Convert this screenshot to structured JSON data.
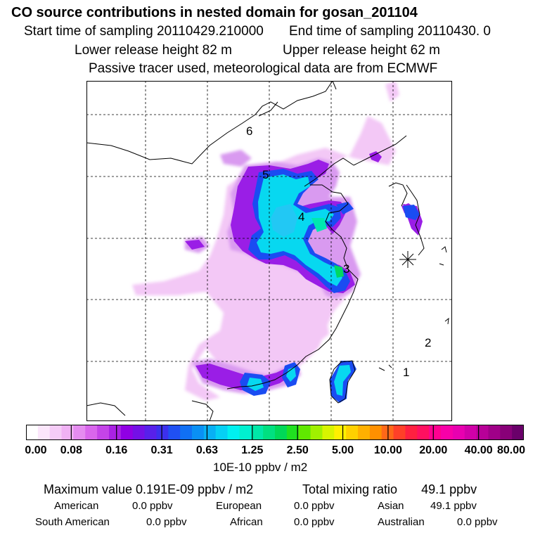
{
  "header": {
    "title": "CO  source contributions in nested domain for gosan_201104",
    "start": "Start time of sampling 20110429.210000",
    "end": "End time of sampling 20110430.     0",
    "lower": "Lower release height   82 m",
    "upper": "Upper release height   62 m",
    "tracer": "Passive tracer used, meteorological data are from ECMWF"
  },
  "map": {
    "region_labels": [
      "1",
      "2",
      "3",
      "4",
      "5",
      "6"
    ],
    "receptor": "gosan"
  },
  "colorbar": {
    "ticks": [
      "0.00",
      "0.08",
      "0.16",
      "0.31",
      "0.63",
      "1.25",
      "2.50",
      "5.00",
      "10.00",
      "20.00",
      "40.00",
      "80.00"
    ],
    "colors": [
      "#ffffff",
      "#fbe6fb",
      "#f5ccf7",
      "#f0b2f4",
      "#e58cf0",
      "#d966ec",
      "#c444e8",
      "#aa22e4",
      "#9000e4",
      "#7410e6",
      "#5820ea",
      "#3c30ee",
      "#2050f2",
      "#1070f4",
      "#0a90f4",
      "#08b0f4",
      "#06d0f4",
      "#00f0f0",
      "#00f0d0",
      "#00e8a8",
      "#00e080",
      "#00d858",
      "#20e020",
      "#60e800",
      "#a0f000",
      "#d8f400",
      "#fff000",
      "#ffd000",
      "#ffb000",
      "#ff9000",
      "#ff6818",
      "#ff4028",
      "#ff2040",
      "#ff1060",
      "#ff0090",
      "#f800a8",
      "#e800b0",
      "#d000a8",
      "#b80098",
      "#a00088",
      "#880078",
      "#6a006a"
    ],
    "units": "10E-10 ppbv / m2"
  },
  "summary": {
    "max": "Maximum value  0.191E-09 ppbv / m2",
    "total_label": "Total mixing ratio",
    "total_value": "49.1 ppbv",
    "regions": [
      {
        "name": "American",
        "value": "0.0 ppbv"
      },
      {
        "name": "European",
        "value": "0.0 ppbv"
      },
      {
        "name": "Asian",
        "value": "49.1 ppbv"
      },
      {
        "name": "South American",
        "value": "0.0 ppbv"
      },
      {
        "name": "African",
        "value": "0.0 ppbv"
      },
      {
        "name": "Australian",
        "value": "0.0 ppbv"
      }
    ]
  }
}
